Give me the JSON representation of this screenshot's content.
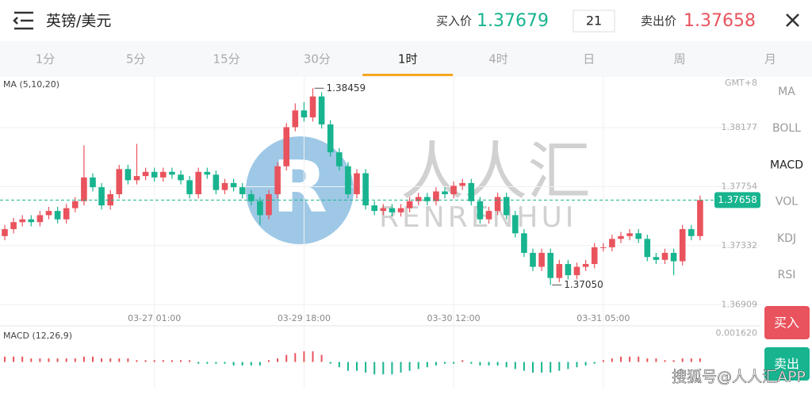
{
  "header": {
    "title": "英镑/美元",
    "buy_label": "买入价",
    "buy_price": 1.37679,
    "spread": 21,
    "sell_label": "卖出价",
    "sell_price": 1.37658
  },
  "timeframe_tabs": [
    "1分",
    "5分",
    "15分",
    "30分",
    "1时",
    "4时",
    "日",
    "周",
    "月"
  ],
  "active_tab": 4,
  "indicator_tabs": [
    "MA",
    "BOLL",
    "MACD",
    "VOL",
    "KDJ",
    "RSI"
  ],
  "active_indicator": 2,
  "buttons": {
    "buy": "买入",
    "sell": "卖出"
  },
  "watermark": {
    "name": "人人汇",
    "pinyin": "RENRENHUI"
  },
  "footer_credit": "搜狐号@人人汇APP",
  "chart": {
    "type": "candlestick",
    "indicator_label": "MA (5,10,20)",
    "timezone": "GMT+8",
    "ylim": [
      1.3682,
      1.3854
    ],
    "yticks": [
      1.38177,
      1.37754,
      1.37332,
      1.36909
    ],
    "xticks": [
      {
        "value": 17,
        "label": "03-27 01:00"
      },
      {
        "value": 34,
        "label": "03-29 18:00"
      },
      {
        "value": 51,
        "label": "03-30 12:00"
      },
      {
        "value": 68,
        "label": "03-31 05:00"
      }
    ],
    "last_price": 1.37658,
    "up_color": "#e9535d",
    "down_color": "#17b48f",
    "open": [
      1.374,
      1.3745,
      1.375,
      1.3752,
      1.375,
      1.3755,
      1.3758,
      1.3752,
      1.376,
      1.3765,
      1.3782,
      1.3775,
      1.3762,
      1.377,
      1.3788,
      1.378,
      1.3783,
      1.3786,
      1.3782,
      1.3786,
      1.3784,
      1.378,
      1.377,
      1.3786,
      1.3784,
      1.3773,
      1.3778,
      1.3775,
      1.377,
      1.3765,
      1.3755,
      1.377,
      1.379,
      1.3818,
      1.383,
      1.3825,
      1.384,
      1.382,
      1.38,
      1.379,
      1.377,
      1.3785,
      1.3762,
      1.3758,
      1.376,
      1.3757,
      1.376,
      1.3765,
      1.3768,
      1.3765,
      1.3772,
      1.377,
      1.3776,
      1.3778,
      1.3765,
      1.3752,
      1.3758,
      1.3768,
      1.3755,
      1.3742,
      1.3728,
      1.3718,
      1.3728,
      1.371,
      1.372,
      1.3712,
      1.3718,
      1.372,
      1.3732,
      1.3732,
      1.3738,
      1.374,
      1.3742,
      1.3738,
      1.3725,
      1.3723,
      1.3728,
      1.3722,
      1.3745,
      1.374
    ],
    "high": [
      1.3748,
      1.3753,
      1.3755,
      1.3755,
      1.3758,
      1.3761,
      1.3761,
      1.3763,
      1.3768,
      1.3805,
      1.3785,
      1.3778,
      1.3773,
      1.3791,
      1.3791,
      1.3806,
      1.3789,
      1.3789,
      1.3789,
      1.3789,
      1.3787,
      1.3783,
      1.3789,
      1.3789,
      1.3787,
      1.3781,
      1.3781,
      1.3778,
      1.3773,
      1.3768,
      1.3773,
      1.3793,
      1.3821,
      1.3835,
      1.3836,
      1.38459,
      1.3843,
      1.3823,
      1.3803,
      1.3793,
      1.3788,
      1.3788,
      1.3765,
      1.3763,
      1.3763,
      1.3763,
      1.3768,
      1.3771,
      1.3771,
      1.3775,
      1.3775,
      1.3779,
      1.3781,
      1.3781,
      1.3768,
      1.3761,
      1.3771,
      1.3771,
      1.3758,
      1.3745,
      1.3731,
      1.3731,
      1.3731,
      1.3723,
      1.3723,
      1.3721,
      1.3723,
      1.3735,
      1.3735,
      1.3741,
      1.3743,
      1.3745,
      1.3745,
      1.3741,
      1.3728,
      1.3731,
      1.3731,
      1.3748,
      1.3748,
      1.3769
    ],
    "low": [
      1.3737,
      1.3742,
      1.3747,
      1.3747,
      1.3747,
      1.3752,
      1.3749,
      1.3749,
      1.3757,
      1.3762,
      1.3772,
      1.3759,
      1.3759,
      1.3767,
      1.3777,
      1.3777,
      1.378,
      1.3779,
      1.3779,
      1.3781,
      1.3777,
      1.3767,
      1.3767,
      1.3781,
      1.377,
      1.377,
      1.3772,
      1.3767,
      1.3762,
      1.3748,
      1.3752,
      1.3767,
      1.3787,
      1.3815,
      1.3822,
      1.3822,
      1.3817,
      1.3797,
      1.3787,
      1.3767,
      1.3767,
      1.3759,
      1.3755,
      1.3755,
      1.3754,
      1.3754,
      1.3757,
      1.3762,
      1.3762,
      1.3762,
      1.3767,
      1.3767,
      1.3773,
      1.3762,
      1.3749,
      1.3749,
      1.3755,
      1.3752,
      1.3739,
      1.3725,
      1.3715,
      1.3715,
      1.3705,
      1.3707,
      1.3709,
      1.3709,
      1.3715,
      1.3717,
      1.3729,
      1.3729,
      1.3735,
      1.3737,
      1.3735,
      1.3722,
      1.372,
      1.372,
      1.3712,
      1.3719,
      1.3737,
      1.3737
    ],
    "close": [
      1.3745,
      1.375,
      1.3752,
      1.375,
      1.3755,
      1.3758,
      1.3752,
      1.376,
      1.3765,
      1.3782,
      1.3775,
      1.3762,
      1.377,
      1.3788,
      1.378,
      1.3783,
      1.3786,
      1.3782,
      1.3786,
      1.3784,
      1.378,
      1.377,
      1.3786,
      1.3784,
      1.3773,
      1.3778,
      1.3775,
      1.377,
      1.3765,
      1.3755,
      1.377,
      1.379,
      1.3818,
      1.383,
      1.3825,
      1.384,
      1.382,
      1.38,
      1.379,
      1.377,
      1.3785,
      1.3762,
      1.3758,
      1.376,
      1.3757,
      1.376,
      1.3765,
      1.3768,
      1.3765,
      1.3772,
      1.377,
      1.3776,
      1.3778,
      1.3765,
      1.3752,
      1.3758,
      1.3768,
      1.3755,
      1.3742,
      1.3728,
      1.3718,
      1.3728,
      1.371,
      1.372,
      1.3712,
      1.3718,
      1.372,
      1.3732,
      1.3732,
      1.3738,
      1.374,
      1.3742,
      1.3738,
      1.3725,
      1.3723,
      1.3728,
      1.3722,
      1.3745,
      1.374,
      1.37658
    ],
    "annotations": [
      {
        "index": 35,
        "value": 1.38459,
        "label": "1.38459"
      },
      {
        "index": 62,
        "value": 1.3705,
        "label": "1.37050"
      }
    ],
    "macd": {
      "label": "MACD (12,26,9)",
      "ylim": [
        -0.0015,
        0.002
      ],
      "yticks": [
        {
          "value": 0.00162,
          "label": "0.001620"
        }
      ],
      "histogram": [
        0.0003,
        0.0003,
        0.0003,
        0.0002,
        0.0002,
        0.0002,
        0.0002,
        0.0002,
        0.0002,
        0.0003,
        0.0003,
        0.0002,
        0.0002,
        0.0002,
        0.0002,
        0.0001,
        0.0001,
        0.0001,
        0.0001,
        0.0001,
        0.0001,
        0.0001,
        -0.0001,
        -0.0001,
        -0.0001,
        -0.0001,
        -0.0002,
        -0.0002,
        -0.0002,
        -0.0002,
        0.0001,
        0.0002,
        0.0004,
        0.0005,
        0.0006,
        0.0006,
        0.0004,
        -0.0001,
        -0.0003,
        -0.0005,
        -0.0005,
        -0.0006,
        -0.0007,
        -0.0007,
        -0.0007,
        -0.0006,
        -0.0005,
        -0.0004,
        -0.0003,
        -0.0002,
        -0.0001,
        -0.0001,
        0.0001,
        -0.0001,
        -0.0002,
        -0.0002,
        -0.0002,
        -0.0003,
        -0.0004,
        -0.0005,
        -0.0006,
        -0.0006,
        -0.0006,
        -0.0005,
        -0.0004,
        -0.0003,
        -0.0002,
        -0.0001,
        0.0001,
        0.0002,
        0.0003,
        0.0003,
        0.0003,
        0.0002,
        0.0002,
        0.0001,
        0.0001,
        0.0002,
        0.0002,
        0.0002
      ]
    }
  }
}
